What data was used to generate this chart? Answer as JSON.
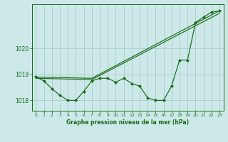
{
  "title": "Graphe pression niveau de la mer (hPa)",
  "bg_color": "#cce8e8",
  "grid_color": "#aacccc",
  "line_color": "#1a6b1a",
  "x_ticks": [
    0,
    1,
    2,
    3,
    4,
    5,
    6,
    7,
    8,
    9,
    10,
    11,
    12,
    13,
    14,
    15,
    16,
    17,
    18,
    19,
    20,
    21,
    22,
    23
  ],
  "y_ticks": [
    1018,
    1019,
    1020
  ],
  "ylim": [
    1017.6,
    1021.7
  ],
  "xlim": [
    -0.5,
    23.5
  ],
  "series1": [
    1018.9,
    1018.75,
    1018.45,
    1018.2,
    1018.0,
    1018.0,
    1018.35,
    1018.75,
    1018.85,
    1018.85,
    1018.7,
    1018.85,
    1018.65,
    1018.55,
    1018.1,
    1018.0,
    1018.0,
    1018.55,
    1019.55,
    1019.55,
    1021.0,
    1021.2,
    1021.4,
    1021.45
  ],
  "series2_x": [
    0,
    7,
    23
  ],
  "series2_y": [
    1018.9,
    1018.85,
    1021.45
  ],
  "series3_x": [
    0,
    7,
    23
  ],
  "series3_y": [
    1018.85,
    1018.8,
    1021.35
  ],
  "marker_size": 2.5,
  "line_width": 0.85
}
